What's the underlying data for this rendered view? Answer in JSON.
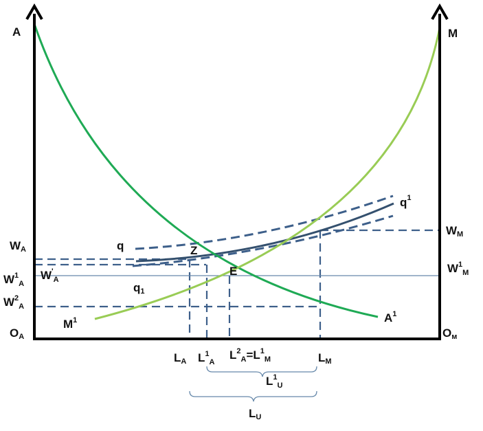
{
  "colors": {
    "axis": "#000000",
    "demand_curve": "#1faa55",
    "supply_curve": "#99cc55",
    "dashed_guides": "#3d5f8a",
    "indifference_curve": "#34506e",
    "equilibrium_line": "#6688aa"
  },
  "labels": {
    "top_left": "A",
    "top_right": "M",
    "origin_left": {
      "main": "O",
      "sub": "A"
    },
    "origin_right": {
      "main": "O",
      "sub": "м"
    },
    "wa": {
      "main": "W",
      "sub": "A"
    },
    "wa1": {
      "main": "W",
      "sup": "1",
      "sub": "A"
    },
    "wa_prime": {
      "main": "W",
      "sup": "'",
      "sub": "A"
    },
    "wa2": {
      "main": "W",
      "sup": "2",
      "sub": "A"
    },
    "wm": {
      "main": "W",
      "sub": "M"
    },
    "wm1": {
      "main": "W",
      "sup": "1",
      "sub": "M"
    },
    "q": "q",
    "q_sub": {
      "main": "q",
      "sub": "1"
    },
    "q_sup": {
      "main": "q",
      "sup": "1"
    },
    "point_z": "Z",
    "point_e": "E",
    "m1": {
      "main": "M",
      "sup": "1"
    },
    "a1": {
      "main": "A",
      "sup": "1"
    },
    "la": {
      "main": "L",
      "sub": "A"
    },
    "la1": {
      "main": "L",
      "sup": "1",
      "sub": "A"
    },
    "la2_lm1": {
      "main": "L",
      "sup": "2",
      "sub": "A",
      "eq": "=L",
      "sup2": "1",
      "sub2": "M"
    },
    "lm": {
      "main": "L",
      "sub": "M"
    },
    "lu1": {
      "main": "L",
      "sup": "1",
      "sub": "U"
    },
    "lu": {
      "main": "L",
      "sub": "U"
    }
  }
}
